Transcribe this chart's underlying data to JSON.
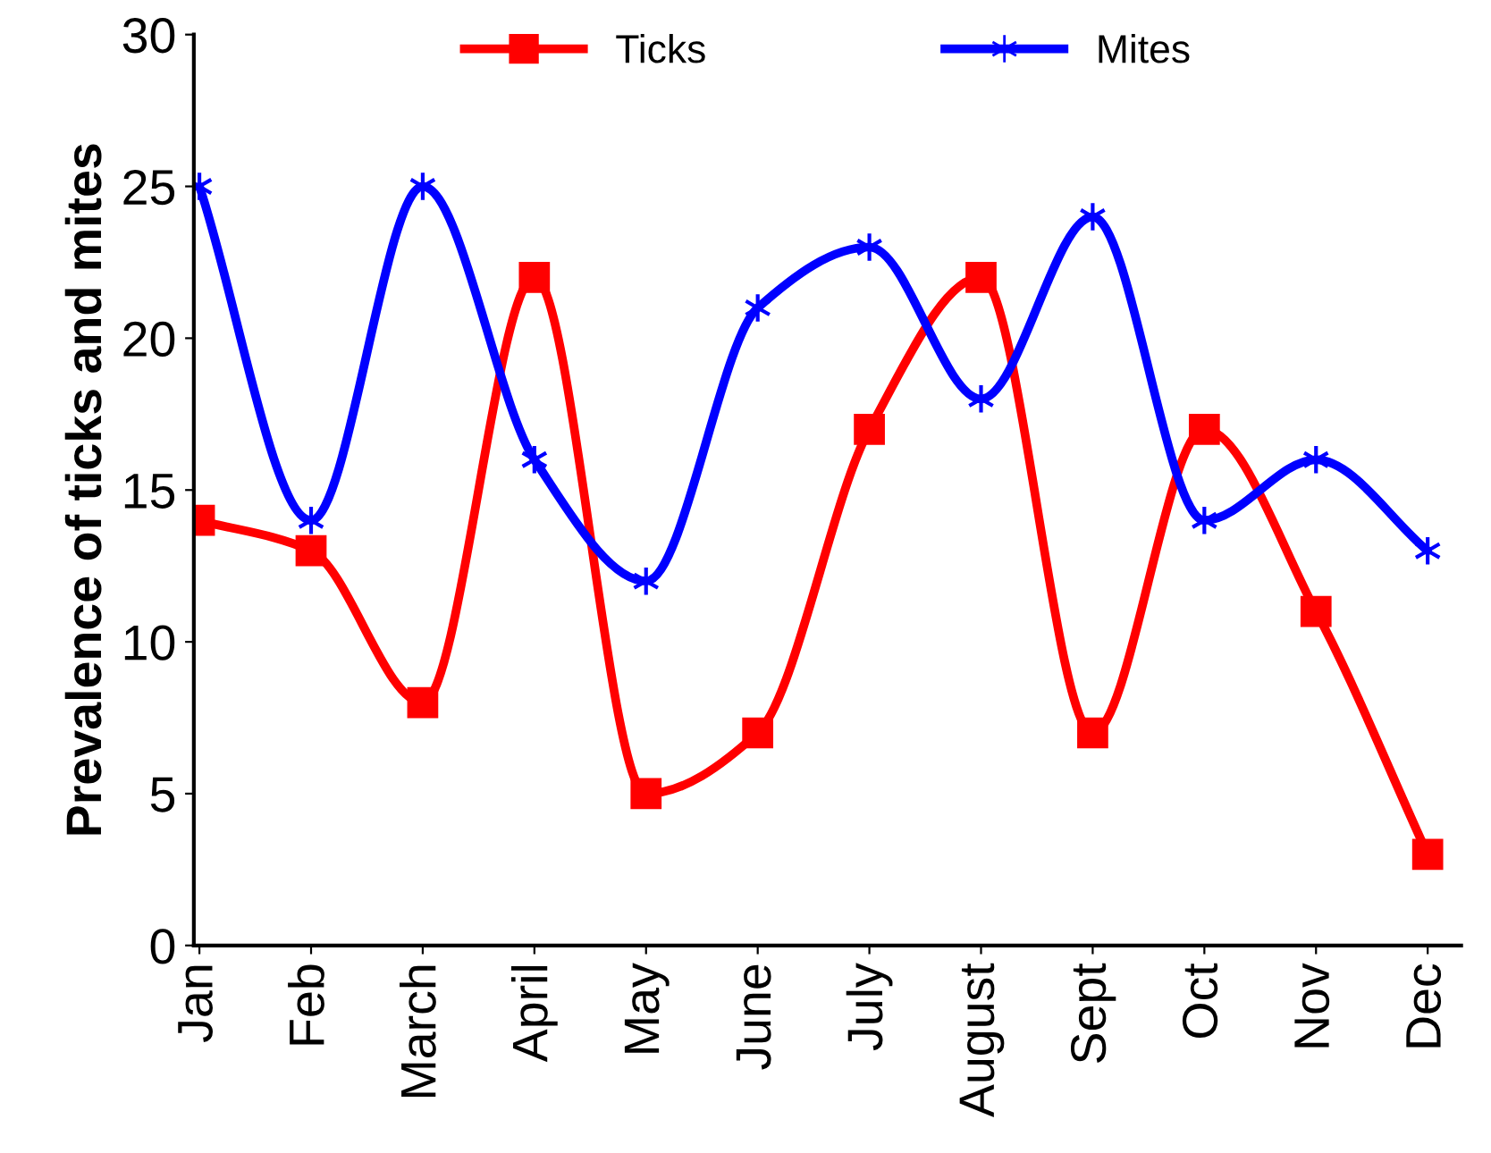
{
  "chart_data": {
    "type": "line",
    "ylabel": "Prevalence of ticks and mites",
    "categories": [
      "Jan",
      "Feb",
      "March",
      "April",
      "May",
      "June",
      "July",
      "August",
      "Sept",
      "Oct",
      "Nov",
      "Dec"
    ],
    "series": [
      {
        "name": "Ticks",
        "color": "#ff0000",
        "marker": "square",
        "values": [
          14,
          13,
          8,
          22,
          5,
          7,
          17,
          22,
          7,
          17,
          11,
          3
        ]
      },
      {
        "name": "Mites",
        "color": "#0000ff",
        "marker": "cross",
        "values": [
          25,
          14,
          25,
          16,
          12,
          21,
          23,
          18,
          24,
          14,
          16,
          13
        ]
      }
    ],
    "ylim": [
      0,
      30
    ],
    "yticks": [
      0,
      5,
      10,
      15,
      20,
      25,
      30
    ],
    "grid": false,
    "legend": "top",
    "line_style": "solid"
  }
}
